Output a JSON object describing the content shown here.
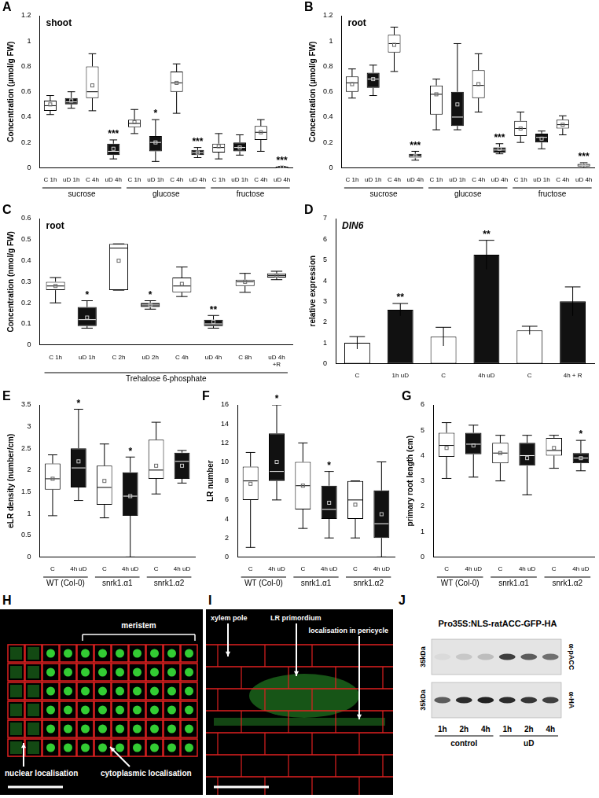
{
  "chart_data": [
    {
      "panel": "A",
      "type": "box",
      "title": "shoot",
      "ylabel": "Concentration (µmol/g FW)",
      "categories": [
        "C 1h",
        "uD 1h",
        "C 4h",
        "uD 4h",
        "C 1h",
        "uD 1h",
        "C 4h",
        "uD 4h",
        "C 1h",
        "uD 1h",
        "C 4h",
        "uD 4h"
      ],
      "groups": [
        "sucrose",
        "glucose",
        "fructose"
      ],
      "boxes": [
        {
          "min": 0.42,
          "q1": 0.45,
          "median": 0.49,
          "q3": 0.53,
          "max": 0.57,
          "mean": 0.5
        },
        {
          "min": 0.47,
          "q1": 0.5,
          "median": 0.52,
          "q3": 0.55,
          "max": 0.6,
          "mean": 0.53
        },
        {
          "min": 0.45,
          "q1": 0.55,
          "median": 0.6,
          "q3": 0.8,
          "max": 0.9,
          "mean": 0.65
        },
        {
          "min": 0.07,
          "q1": 0.1,
          "median": 0.13,
          "q3": 0.19,
          "max": 0.22,
          "mean": 0.15
        },
        {
          "min": 0.27,
          "q1": 0.32,
          "median": 0.35,
          "q3": 0.38,
          "max": 0.46,
          "mean": 0.36
        },
        {
          "min": 0.05,
          "q1": 0.13,
          "median": 0.2,
          "q3": 0.25,
          "max": 0.38,
          "mean": 0.2
        },
        {
          "min": 0.43,
          "q1": 0.6,
          "median": 0.67,
          "q3": 0.76,
          "max": 0.82,
          "mean": 0.67
        },
        {
          "min": 0.08,
          "q1": 0.1,
          "median": 0.12,
          "q3": 0.14,
          "max": 0.16,
          "mean": 0.12
        },
        {
          "min": 0.07,
          "q1": 0.12,
          "median": 0.16,
          "q3": 0.19,
          "max": 0.27,
          "mean": 0.17
        },
        {
          "min": 0.1,
          "q1": 0.13,
          "median": 0.16,
          "q3": 0.2,
          "max": 0.26,
          "mean": 0.16
        },
        {
          "min": 0.13,
          "q1": 0.22,
          "median": 0.28,
          "q3": 0.33,
          "max": 0.38,
          "mean": 0.28
        },
        {
          "min": 0.0,
          "q1": 0.0,
          "median": 0.0,
          "q3": 0.01,
          "max": 0.01,
          "mean": 0.005
        }
      ],
      "colors": [
        "#ffffff",
        "#111111",
        "#ffffff",
        "#111111",
        "#ffffff",
        "#111111",
        "#ffffff",
        "#111111",
        "#ffffff",
        "#111111",
        "#ffffff",
        "#111111"
      ],
      "annotations": [
        null,
        null,
        null,
        "***",
        null,
        "*",
        null,
        "***",
        null,
        null,
        null,
        "***"
      ],
      "ylim": [
        0,
        1.2
      ],
      "yticks": [
        0,
        0.2,
        0.4,
        0.6,
        0.8,
        1,
        1.2
      ],
      "grid": false
    },
    {
      "panel": "B",
      "type": "box",
      "title": "root",
      "ylabel": "Concentration (µmol/g FW)",
      "categories": [
        "C 1h",
        "uD 1h",
        "C 4h",
        "uD 4h",
        "C 1h",
        "uD 1h",
        "C 4h",
        "uD 4h",
        "C 1h",
        "uD 1h",
        "C 4h",
        "uD 4h"
      ],
      "groups": [
        "sucrose",
        "glucose",
        "fructose"
      ],
      "boxes": [
        {
          "min": 0.55,
          "q1": 0.6,
          "median": 0.67,
          "q3": 0.72,
          "max": 0.78,
          "mean": 0.66
        },
        {
          "min": 0.57,
          "q1": 0.63,
          "median": 0.7,
          "q3": 0.75,
          "max": 0.81,
          "mean": 0.7
        },
        {
          "min": 0.76,
          "q1": 0.91,
          "median": 0.98,
          "q3": 1.05,
          "max": 1.11,
          "mean": 0.97
        },
        {
          "min": 0.06,
          "q1": 0.08,
          "median": 0.09,
          "q3": 0.11,
          "max": 0.13,
          "mean": 0.09
        },
        {
          "min": 0.3,
          "q1": 0.42,
          "median": 0.58,
          "q3": 0.65,
          "max": 0.7,
          "mean": 0.58
        },
        {
          "min": 0.3,
          "q1": 0.33,
          "median": 0.4,
          "q3": 0.6,
          "max": 0.98,
          "mean": 0.5
        },
        {
          "min": 0.44,
          "q1": 0.55,
          "median": 0.65,
          "q3": 0.77,
          "max": 0.9,
          "mean": 0.66
        },
        {
          "min": 0.11,
          "q1": 0.12,
          "median": 0.14,
          "q3": 0.16,
          "max": 0.19,
          "mean": 0.15
        },
        {
          "min": 0.2,
          "q1": 0.25,
          "median": 0.31,
          "q3": 0.37,
          "max": 0.44,
          "mean": 0.31
        },
        {
          "min": 0.15,
          "q1": 0.2,
          "median": 0.24,
          "q3": 0.27,
          "max": 0.29,
          "mean": 0.23
        },
        {
          "min": 0.26,
          "q1": 0.31,
          "median": 0.34,
          "q3": 0.38,
          "max": 0.41,
          "mean": 0.34
        },
        {
          "min": 0.0,
          "q1": 0.01,
          "median": 0.02,
          "q3": 0.03,
          "max": 0.04,
          "mean": 0.02
        }
      ],
      "colors": [
        "#ffffff",
        "#111111",
        "#ffffff",
        "#111111",
        "#ffffff",
        "#111111",
        "#ffffff",
        "#111111",
        "#ffffff",
        "#111111",
        "#ffffff",
        "#111111"
      ],
      "annotations": [
        null,
        null,
        null,
        "***",
        null,
        null,
        null,
        "***",
        null,
        null,
        null,
        "***"
      ],
      "ylim": [
        0,
        1.2
      ],
      "yticks": [
        0,
        0.2,
        0.4,
        0.6,
        0.8,
        1,
        1.2
      ],
      "grid": false
    },
    {
      "panel": "C",
      "type": "box",
      "title": "root",
      "ylabel": "Concentration (nmol/g FW)",
      "categories": [
        "C 1h",
        "uD 1h",
        "C 2h",
        "uD 2h",
        "C 4h",
        "uD 4h",
        "C 8h",
        [
          "uD 4h",
          "+R"
        ]
      ],
      "groups": [
        "Trehalose 6-phosphate"
      ],
      "boxes": [
        {
          "min": 0.2,
          "q1": 0.26,
          "median": 0.28,
          "q3": 0.3,
          "max": 0.32,
          "mean": 0.28
        },
        {
          "min": 0.08,
          "q1": 0.09,
          "median": 0.12,
          "q3": 0.18,
          "max": 0.21,
          "mean": 0.13
        },
        {
          "min": 0.26,
          "q1": 0.26,
          "median": 0.46,
          "q3": 0.48,
          "max": 0.48,
          "mean": 0.4
        },
        {
          "min": 0.17,
          "q1": 0.18,
          "median": 0.19,
          "q3": 0.2,
          "max": 0.21,
          "mean": 0.19
        },
        {
          "min": 0.23,
          "q1": 0.25,
          "median": 0.28,
          "q3": 0.32,
          "max": 0.37,
          "mean": 0.29
        },
        {
          "min": 0.08,
          "q1": 0.09,
          "median": 0.1,
          "q3": 0.12,
          "max": 0.14,
          "mean": 0.11
        },
        {
          "min": 0.25,
          "q1": 0.28,
          "median": 0.3,
          "q3": 0.31,
          "max": 0.34,
          "mean": 0.3
        },
        {
          "min": 0.31,
          "q1": 0.32,
          "median": 0.33,
          "q3": 0.34,
          "max": 0.35,
          "mean": 0.33
        }
      ],
      "colors": [
        "#ffffff",
        "#111111",
        "#ffffff",
        "#111111",
        "#ffffff",
        "#111111",
        "#ffffff",
        "#d9d9d9"
      ],
      "annotations": [
        null,
        "*",
        null,
        "*",
        null,
        "**",
        null,
        null
      ],
      "ylim": [
        0,
        0.6
      ],
      "yticks": [
        0,
        0.1,
        0.2,
        0.3,
        0.4,
        0.5,
        0.6
      ],
      "grid": false
    },
    {
      "panel": "D",
      "type": "bar",
      "title": "DIN6",
      "ylabel": "relative expression",
      "categories": [
        "C",
        "1h uD",
        "C",
        "4h uD",
        "C",
        "4h + R"
      ],
      "values": [
        1.0,
        2.6,
        1.3,
        5.25,
        1.6,
        3.0
      ],
      "errors": [
        0.3,
        0.3,
        0.45,
        0.7,
        0.2,
        0.7
      ],
      "colors": [
        "#ffffff",
        "#111111",
        "#ffffff",
        "#111111",
        "#ffffff",
        "#111111"
      ],
      "annotations": [
        null,
        "**",
        null,
        "**",
        null,
        null
      ],
      "ylim": [
        0,
        7
      ],
      "yticks": [
        0,
        1,
        2,
        3,
        4,
        5,
        6,
        7
      ],
      "grid": false
    },
    {
      "panel": "E",
      "type": "box",
      "ylabel": "eLR density (number/cm)",
      "categories": [
        "C",
        "4h uD",
        "C",
        "4h uD",
        "C",
        "4h uD"
      ],
      "groups": [
        "WT (Col-0)",
        "snrk1.α1",
        "snrk1.α2"
      ],
      "boxes": [
        {
          "min": 0.95,
          "q1": 1.55,
          "median": 1.8,
          "q3": 2.15,
          "max": 2.35,
          "mean": 1.8
        },
        {
          "min": 1.3,
          "q1": 1.6,
          "median": 2.05,
          "q3": 2.5,
          "max": 3.4,
          "mean": 2.2
        },
        {
          "min": 0.9,
          "q1": 1.2,
          "median": 1.6,
          "q3": 2.1,
          "max": 2.6,
          "mean": 1.75
        },
        {
          "min": 0,
          "q1": 0.95,
          "median": 1.4,
          "q3": 1.95,
          "max": 2.3,
          "mean": 1.4
        },
        {
          "min": 1.45,
          "q1": 1.8,
          "median": 2.0,
          "q3": 2.7,
          "max": 3.1,
          "mean": 2.1
        },
        {
          "min": 1.7,
          "q1": 1.8,
          "median": 2.2,
          "q3": 2.4,
          "max": 2.45,
          "mean": 2.1
        }
      ],
      "colors": [
        "#ffffff",
        "#111111",
        "#ffffff",
        "#111111",
        "#ffffff",
        "#111111"
      ],
      "annotations": [
        null,
        "*",
        null,
        "*",
        null,
        null
      ],
      "ylim": [
        0,
        3.5
      ],
      "yticks": [
        0,
        0.5,
        1,
        1.5,
        2,
        2.5,
        3,
        3.5
      ],
      "grid": false
    },
    {
      "panel": "F",
      "type": "box",
      "ylabel": "LR number",
      "categories": [
        "C",
        "4h uD",
        "C",
        "4h uD",
        "C",
        "4h uD"
      ],
      "groups": [
        "WT (Col-0)",
        "snrk1.α1",
        "snrk1.α2"
      ],
      "boxes": [
        {
          "min": 1,
          "q1": 6,
          "median": 8,
          "q3": 9.5,
          "max": 11,
          "mean": 7.7
        },
        {
          "min": 6,
          "q1": 8,
          "median": 9,
          "q3": 13,
          "max": 16,
          "mean": 10
        },
        {
          "min": 3,
          "q1": 5,
          "median": 7.5,
          "q3": 10,
          "max": 12,
          "mean": 7.5
        },
        {
          "min": 2,
          "q1": 4,
          "median": 5,
          "q3": 7.5,
          "max": 9,
          "mean": 5.7
        },
        {
          "min": 2,
          "q1": 4,
          "median": 6,
          "q3": 8,
          "max": 8,
          "mean": 5.5
        },
        {
          "min": 0,
          "q1": 2,
          "median": 3.5,
          "q3": 7,
          "max": 10,
          "mean": 4.5
        }
      ],
      "colors": [
        "#ffffff",
        "#111111",
        "#ffffff",
        "#111111",
        "#ffffff",
        "#111111"
      ],
      "annotations": [
        null,
        "*",
        null,
        "*",
        null,
        null
      ],
      "ylim": [
        0,
        16
      ],
      "yticks": [
        0,
        2,
        4,
        6,
        8,
        10,
        12,
        14,
        16
      ],
      "grid": false
    },
    {
      "panel": "G",
      "type": "box",
      "ylabel": "primary root length (cm)",
      "categories": [
        "C",
        "4h uD",
        "C",
        "4h uD",
        "C",
        "4h uD"
      ],
      "groups": [
        "WT (Col-0)",
        "snrk1.α1",
        "snrk1.α2"
      ],
      "boxes": [
        {
          "min": 3.1,
          "q1": 3.95,
          "median": 4.4,
          "q3": 4.9,
          "max": 5.3,
          "mean": 4.3
        },
        {
          "min": 3.15,
          "q1": 4.05,
          "median": 4.45,
          "q3": 4.9,
          "max": 5.2,
          "mean": 4.4
        },
        {
          "min": 3.0,
          "q1": 3.7,
          "median": 4.1,
          "q3": 4.5,
          "max": 4.8,
          "mean": 4.1
        },
        {
          "min": 2.45,
          "q1": 3.6,
          "median": 4.0,
          "q3": 4.5,
          "max": 4.8,
          "mean": 3.9
        },
        {
          "min": 3.5,
          "q1": 4.0,
          "median": 4.2,
          "q3": 4.7,
          "max": 4.8,
          "mean": 4.3
        },
        {
          "min": 3.4,
          "q1": 3.7,
          "median": 3.9,
          "q3": 4.1,
          "max": 4.6,
          "mean": 3.9
        }
      ],
      "colors": [
        "#ffffff",
        "#111111",
        "#ffffff",
        "#111111",
        "#ffffff",
        "#111111"
      ],
      "annotations": [
        null,
        null,
        null,
        null,
        null,
        "*"
      ],
      "ylim": [
        0,
        6
      ],
      "yticks": [
        0,
        1,
        2,
        3,
        4,
        5,
        6
      ],
      "grid": false
    }
  ],
  "images": [
    {
      "panel": "H",
      "type": "micrograph",
      "bracket_label": "meristem",
      "arrow_labels": [
        "nuclear localisation",
        "cytoplasmic localisation"
      ]
    },
    {
      "panel": "I",
      "type": "micrograph",
      "arrow_labels": [
        "xylem pole",
        "LR primordium",
        "localisation in pericycle"
      ]
    },
    {
      "panel": "J",
      "type": "western blot",
      "title": "Pro35S:NLS-ratACC-GFP-HA",
      "blots": [
        {
          "size_label": "35kDa",
          "antibody": "α-pACC",
          "intensities": [
            0.05,
            0.15,
            0.2,
            0.85,
            0.7,
            0.6
          ]
        },
        {
          "size_label": "35kDa",
          "antibody": "α-HA",
          "intensities": [
            0.7,
            0.95,
            1,
            0.95,
            0.9,
            0.85
          ]
        }
      ],
      "lanes": [
        "1h",
        "2h",
        "4h",
        "1h",
        "2h",
        "4h"
      ],
      "groups": [
        "control",
        "uD"
      ]
    }
  ]
}
